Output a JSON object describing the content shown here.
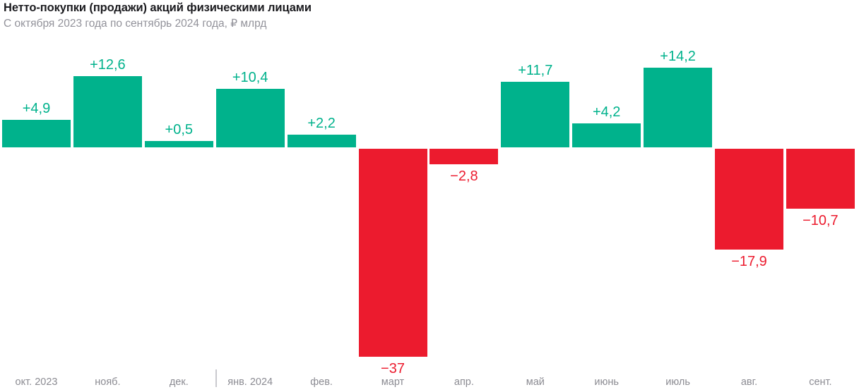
{
  "header": {
    "title": "Нетто-покупки (продажи) акций физическими лицами",
    "subtitle": "С октября 2023 года по сентябрь 2024 года, ₽ млрд"
  },
  "chart_data": {
    "type": "bar",
    "title": "Нетто-покупки (продажи) акций физическими лицами",
    "subtitle": "С октября 2023 года по сентябрь 2024 года, ₽ млрд",
    "units": "₽ млрд",
    "categories": [
      "окт. 2023",
      "нояб.",
      "дек.",
      "янв. 2024",
      "фев.",
      "март",
      "апр.",
      "май",
      "июнь",
      "июль",
      "авг.",
      "сент."
    ],
    "values": [
      4.9,
      12.6,
      0.5,
      10.4,
      2.2,
      -37,
      -2.8,
      11.7,
      4.2,
      14.2,
      -17.9,
      -10.7
    ],
    "value_labels": [
      "+4,9",
      "+12,6",
      "+0,5",
      "+10,4",
      "+2,2",
      "−37",
      "−2,8",
      "+11,7",
      "+4,2",
      "+14,2",
      "−17,9",
      "−10,7"
    ],
    "colors": {
      "positive": "#00B28C",
      "negative": "#EC1B2E",
      "axis_labels": "#8b8b92"
    },
    "baseline": 0,
    "grid": false,
    "legend": "none",
    "value_label_position": "outside-end",
    "year_divider_after_category": "дек."
  }
}
